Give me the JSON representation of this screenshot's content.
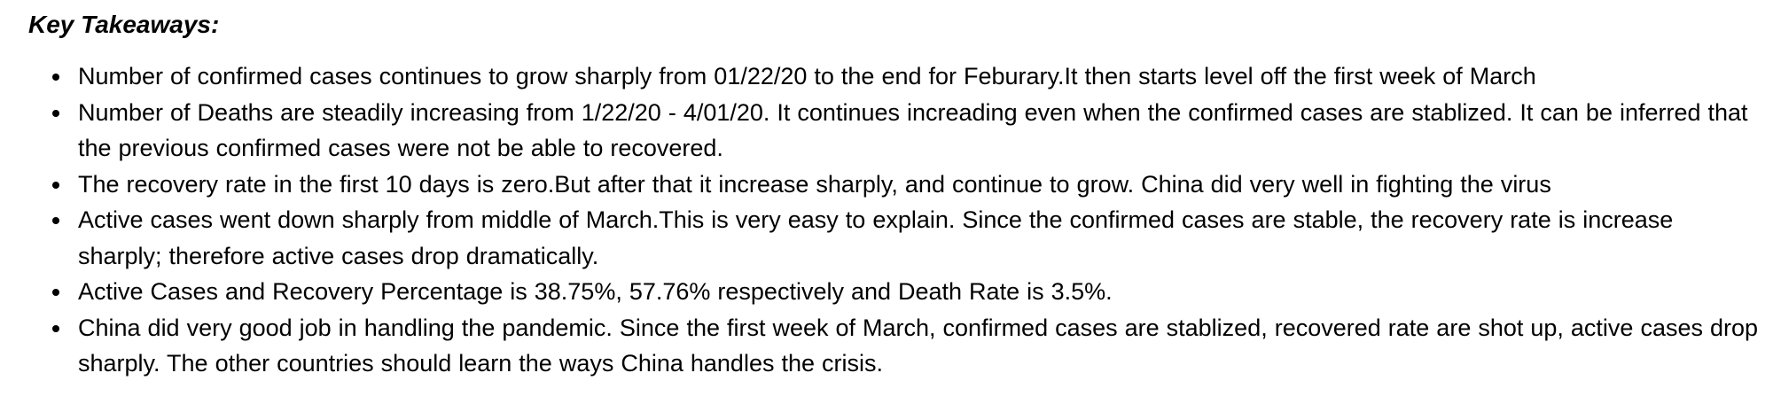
{
  "section": {
    "heading": "Key Takeaways:"
  },
  "takeaways": [
    "Number of confirmed cases continues to grow sharply from 01/22/20 to the end for Feburary.It then starts level off the first week of March",
    "Number of Deaths are steadily increasing from 1/22/20 - 4/01/20. It continues increading even when the confirmed cases are stablized. It can be inferred that the previous confirmed cases were not be able to recovered.",
    "The recovery rate in the first 10 days is zero.But after that it increase sharply, and continue to grow. China did very well in fighting the virus",
    "Active cases went down sharply from middle of March.This is very easy to explain. Since the confirmed cases are stable, the recovery rate is increase sharply; therefore active cases drop dramatically.",
    "Active Cases and Recovery Percentage is 38.75%, 57.76% respectively and Death Rate is 3.5%.",
    "China did very good job in handling the pandemic. Since the first week of March, confirmed cases are stablized, recovered rate are shot up, active cases drop sharply. The other countries should learn the ways China handles the crisis."
  ],
  "icons": {
    "bullet": "bullet-dot-icon"
  },
  "colors": {
    "text": "#000000",
    "background": "#ffffff"
  }
}
